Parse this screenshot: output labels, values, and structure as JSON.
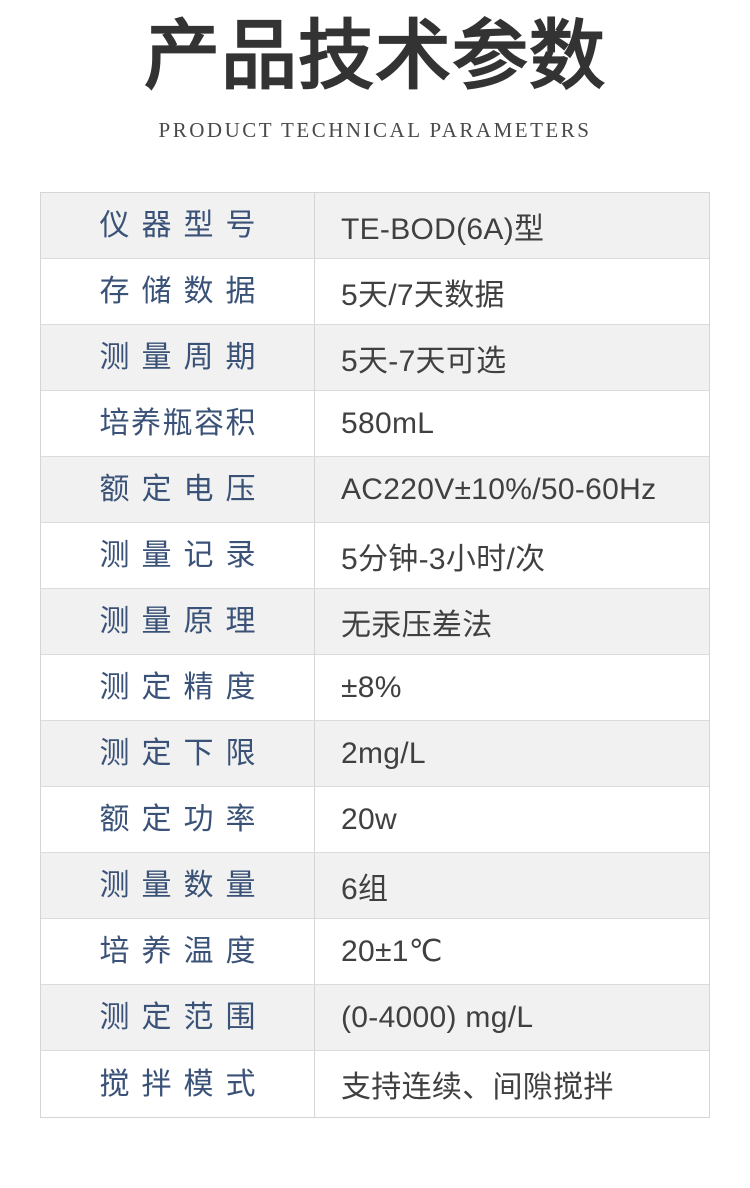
{
  "header": {
    "title": "产品技术参数",
    "subtitle": "PRODUCT TECHNICAL PARAMETERS"
  },
  "colors": {
    "label_blue": "#3a5277",
    "value_gray": "#404040",
    "alt_row_bg": "#f1f1f1",
    "border_gray": "#d5d5d5",
    "title_dark": "#333333"
  },
  "table": {
    "rows": [
      {
        "label": "仪器型号",
        "value": "TE-BOD(6A)型"
      },
      {
        "label": "存储数据",
        "value": "5天/7天数据"
      },
      {
        "label": "测量周期",
        "value": "5天-7天可选"
      },
      {
        "label": "培养瓶容积",
        "value": "580mL"
      },
      {
        "label": "额定电压",
        "value": "AC220V±10%/50-60Hz"
      },
      {
        "label": "测量记录",
        "value": "5分钟-3小时/次"
      },
      {
        "label": "测量原理",
        "value": "无汞压差法"
      },
      {
        "label": "测定精度",
        "value": "±8%"
      },
      {
        "label": "测定下限",
        "value": "2mg/L"
      },
      {
        "label": "额定功率",
        "value": "20w"
      },
      {
        "label": "测量数量",
        "value": "6组"
      },
      {
        "label": "培养温度",
        "value": "20±1℃"
      },
      {
        "label": "测定范围",
        "value": "(0-4000) mg/L"
      },
      {
        "label": "搅拌模式",
        "value": "支持连续、间隙搅拌"
      }
    ]
  }
}
